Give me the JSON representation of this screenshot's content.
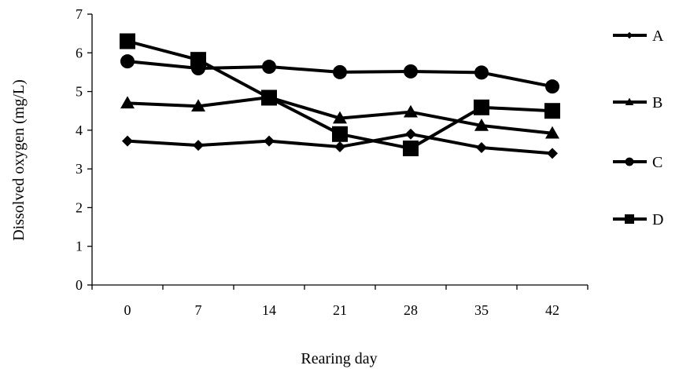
{
  "chart_data": {
    "type": "line",
    "title": "",
    "xlabel": "Rearing day",
    "ylabel": "Dissolved oxygen (mg/L)",
    "x": [
      "0",
      "7",
      "14",
      "21",
      "28",
      "35",
      "42"
    ],
    "ylim": [
      0,
      7
    ],
    "yticks": [
      "0",
      "1",
      "2",
      "3",
      "4",
      "5",
      "6",
      "7"
    ],
    "grid": false,
    "legend_position": "right",
    "series": [
      {
        "name": "A",
        "marker": "diamond",
        "color": "#000000",
        "values": [
          3.72,
          3.61,
          3.72,
          3.57,
          3.9,
          3.55,
          3.4
        ]
      },
      {
        "name": "B",
        "marker": "triangle",
        "color": "#000000",
        "values": [
          4.7,
          4.62,
          4.85,
          4.31,
          4.47,
          4.12,
          3.92
        ]
      },
      {
        "name": "C",
        "marker": "circle",
        "color": "#000000",
        "values": [
          5.78,
          5.6,
          5.64,
          5.5,
          5.52,
          5.49,
          5.13
        ]
      },
      {
        "name": "D",
        "marker": "square",
        "color": "#000000",
        "values": [
          6.3,
          5.82,
          4.84,
          3.9,
          3.53,
          4.59,
          4.5
        ]
      }
    ]
  }
}
